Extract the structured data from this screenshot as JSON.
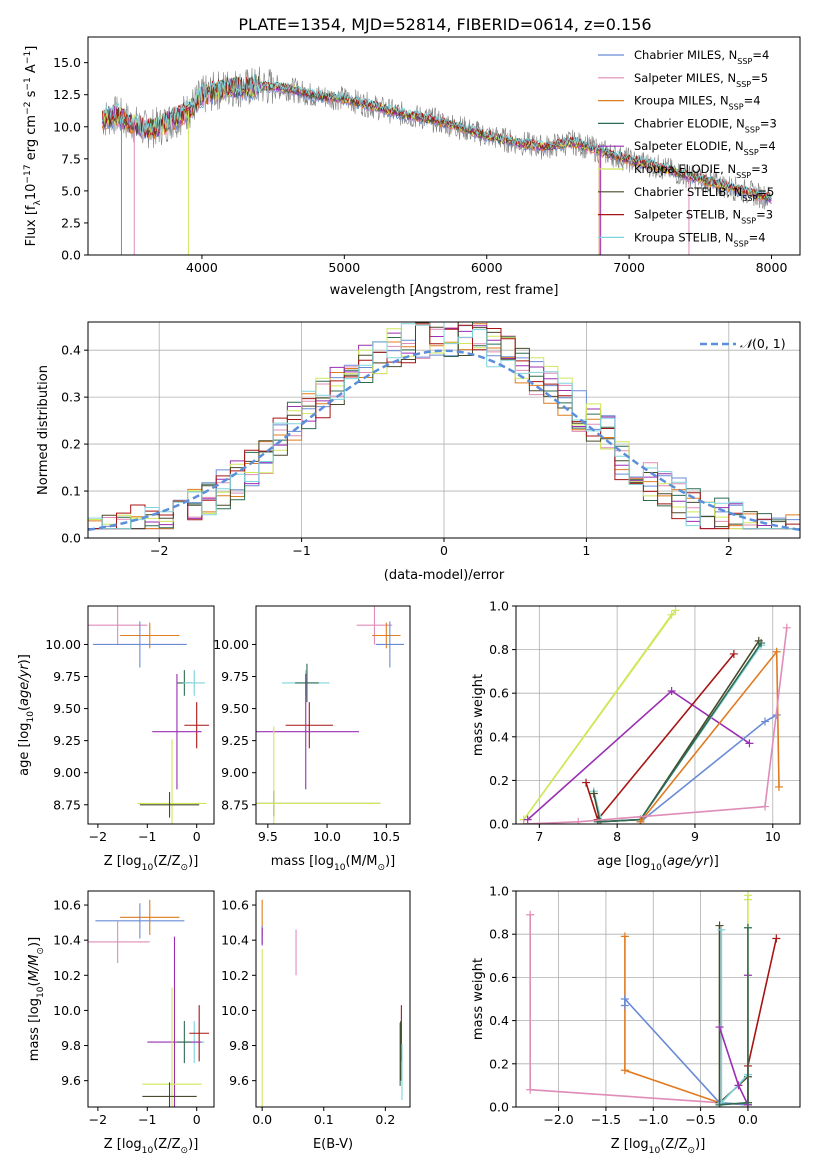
{
  "figure_title": "PLATE=1354, MJD=52814, FIBERID=0614, z=0.156",
  "colors": {
    "Chabrier MILES": "#6a8bd6",
    "Salpeter MILES": "#e08cb8",
    "Kroupa MILES": "#e07b1f",
    "Chabrier ELODIE": "#2e6b52",
    "Salpeter ELODIE": "#9a2fb2",
    "Kroupa ELODIE": "#cfe85a",
    "Chabrier STELIB": "#4a4a2a",
    "Salpeter STELIB": "#a81414",
    "Kroupa STELIB": "#7fd3dc",
    "data": "#808080",
    "gauss": "#5b8fdc"
  },
  "chart_data": [
    {
      "type": "line",
      "panel": "spectrum",
      "xlabel": "wavelength [Angstrom, rest frame]",
      "ylabel": "Flux [f_λ 10^-17 erg cm^-2 s^-1 A^-1]",
      "xlim": [
        3200,
        8200
      ],
      "ylim": [
        0,
        17
      ],
      "xticks": [
        "4000",
        "5000",
        "6000",
        "7000",
        "8000"
      ],
      "yticks": [
        "0.0",
        "2.5",
        "5.0",
        "7.5",
        "10.0",
        "12.5",
        "15.0"
      ],
      "legend_position": "upper-right",
      "legend": [
        {
          "model": "Chabrier MILES",
          "label": "Chabrier MILES, N",
          "nssp": "=4"
        },
        {
          "model": "Salpeter MILES",
          "label": "Salpeter MILES, N",
          "nssp": "=5"
        },
        {
          "model": "Kroupa MILES",
          "label": "Kroupa MILES, N",
          "nssp": "=4"
        },
        {
          "model": "Chabrier ELODIE",
          "label": "Chabrier ELODIE, N",
          "nssp": "=3"
        },
        {
          "model": "Salpeter ELODIE",
          "label": "Salpeter ELODIE, N",
          "nssp": "=4"
        },
        {
          "model": "Kroupa ELODIE",
          "label": "Kroupa ELODIE, N",
          "nssp": "=3"
        },
        {
          "model": "Chabrier STELIB",
          "label": "Chabrier STELIB, N",
          "nssp": "=5"
        },
        {
          "model": "Salpeter STELIB",
          "label": "Salpeter STELIB, N",
          "nssp": "=3"
        },
        {
          "model": "Kroupa STELIB",
          "label": "Kroupa STELIB, N",
          "nssp": "=4"
        }
      ],
      "subscript": "SSP",
      "continuum": {
        "wavelength": [
          3300,
          3400,
          3500,
          3600,
          3700,
          3800,
          3900,
          4000,
          4100,
          4200,
          4300,
          4400,
          4500,
          4600,
          4800,
          5000,
          5200,
          5400,
          5600,
          5800,
          6000,
          6200,
          6400,
          6600,
          6800,
          7000,
          7200,
          7400,
          7600,
          7800,
          8000
        ],
        "flux": [
          10.6,
          10.9,
          10.3,
          9.8,
          10.0,
          10.6,
          11.2,
          12.4,
          12.8,
          13.1,
          13.0,
          13.2,
          13.1,
          13.0,
          12.4,
          12.2,
          11.6,
          11.0,
          10.6,
          10.0,
          9.3,
          8.8,
          8.4,
          8.8,
          8.1,
          7.4,
          6.9,
          6.2,
          5.6,
          5.0,
          4.4
        ]
      },
      "absorption_dips": [
        {
          "model": "Chabrier MILES",
          "wavelength": 3435,
          "min_flux": 0.0
        },
        {
          "model": "Salpeter MILES",
          "wavelength": 3525,
          "min_flux": 0.0
        },
        {
          "model": "Kroupa ELODIE",
          "wavelength": 3905,
          "min_flux": 0.0
        },
        {
          "model": "Kroupa MILES",
          "wavelength": 6790,
          "min_flux": 0.0
        },
        {
          "model": "Salpeter ELODIE",
          "wavelength": 6800,
          "min_flux": 0.0
        },
        {
          "model": "Salpeter MILES",
          "wavelength": 7420,
          "min_flux": 0.0
        }
      ]
    },
    {
      "type": "histogram",
      "panel": "residuals",
      "xlabel": "(data-model)/error",
      "ylabel": "Normed distribution",
      "xlim": [
        -2.5,
        2.5
      ],
      "ylim": [
        0,
        0.46
      ],
      "xticks": [
        "−2",
        "−1",
        "0",
        "1",
        "2"
      ],
      "yticks": [
        "0.0",
        "0.1",
        "0.2",
        "0.3",
        "0.4"
      ],
      "grid": true,
      "gauss_label": "(0, 1)",
      "gauss_symbol": "𝒩",
      "bin_width": 0.1
    },
    {
      "type": "scatter",
      "panel": "age-vs-Z",
      "xlabel_prefix": "Z [log",
      "xlabel_sub": "10",
      "xlabel_suffix": "(Z/Z",
      "ylabel": "age  [log10(age/yr)]",
      "xlim": [
        -2.2,
        0.35
      ],
      "ylim": [
        8.6,
        10.3
      ],
      "xticks": [
        "−2",
        "−1",
        "0"
      ],
      "yticks": [
        "8.75",
        "9.00",
        "9.25",
        "9.50",
        "9.75",
        "10.00"
      ],
      "points": [
        {
          "model": "Salpeter MILES",
          "x": -1.6,
          "xerr": 0.6,
          "y": 10.15,
          "yerr": 0.15
        },
        {
          "model": "Kroupa MILES",
          "x": -0.95,
          "xerr": 0.6,
          "y": 10.07,
          "yerr": 0.1
        },
        {
          "model": "Chabrier MILES",
          "x": -1.15,
          "xerr": 0.95,
          "y": 10.0,
          "yerr": 0.18
        },
        {
          "model": "Chabrier ELODIE",
          "x": -0.25,
          "xerr": 0.15,
          "y": 9.7,
          "yerr": 0.1
        },
        {
          "model": "Kroupa STELIB",
          "x": -0.05,
          "xerr": 0.22,
          "y": 9.7,
          "yerr": 0.1
        },
        {
          "model": "Salpeter STELIB",
          "x": 0.0,
          "xerr": 0.25,
          "y": 9.37,
          "yerr": 0.18
        },
        {
          "model": "Salpeter ELODIE",
          "x": -0.4,
          "xerr": 0.5,
          "y": 9.32,
          "yerr": 0.45
        },
        {
          "model": "Kroupa ELODIE",
          "x": -0.5,
          "xerr": 0.7,
          "y": 8.76,
          "yerr": 0.5
        },
        {
          "model": "Chabrier STELIB",
          "x": -0.55,
          "xerr": 0.6,
          "y": 8.75,
          "yerr": 0.1
        }
      ]
    },
    {
      "type": "scatter",
      "panel": "age-vs-mass",
      "xlabel_prefix": "mass [log",
      "xlabel_sub": "10",
      "xlabel_suffix": "(M/M",
      "xlim": [
        9.4,
        10.7
      ],
      "ylim": [
        8.6,
        10.3
      ],
      "xticks": [
        "9.5",
        "10.0",
        "10.5"
      ],
      "yticks": [
        "8.75",
        "9.00",
        "9.25",
        "9.50",
        "9.75",
        "10.00"
      ],
      "points": [
        {
          "model": "Salpeter MILES",
          "x": 10.4,
          "xerr": 0.15,
          "y": 10.15,
          "yerr": 0.15
        },
        {
          "model": "Kroupa MILES",
          "x": 10.5,
          "xerr": 0.12,
          "y": 10.07,
          "yerr": 0.1
        },
        {
          "model": "Chabrier MILES",
          "x": 10.53,
          "xerr": 0.12,
          "y": 10.0,
          "yerr": 0.18
        },
        {
          "model": "Kroupa STELIB",
          "x": 9.82,
          "xerr": 0.2,
          "y": 9.7,
          "yerr": 0.1
        },
        {
          "model": "Chabrier ELODIE",
          "x": 9.83,
          "xerr": 0.1,
          "y": 9.7,
          "yerr": 0.15
        },
        {
          "model": "Salpeter STELIB",
          "x": 9.85,
          "xerr": 0.2,
          "y": 9.37,
          "yerr": 0.18
        },
        {
          "model": "Salpeter ELODIE",
          "x": 9.82,
          "xerr": 0.45,
          "y": 9.32,
          "yerr": 0.45
        },
        {
          "model": "Chabrier STELIB",
          "x": 9.55,
          "xerr": 0.9,
          "y": 8.76,
          "yerr": 0.1
        },
        {
          "model": "Kroupa ELODIE",
          "x": 9.55,
          "xerr": 0.9,
          "y": 8.76,
          "yerr": 0.6
        }
      ]
    },
    {
      "type": "line",
      "panel": "weight-vs-age",
      "xlabel": "age  [log10(age/yr)]",
      "ylabel": "mass weight",
      "xlim": [
        6.7,
        10.35
      ],
      "ylim": [
        0,
        1.0
      ],
      "xticks": [
        "7",
        "8",
        "9",
        "10"
      ],
      "yticks": [
        "0.0",
        "0.2",
        "0.4",
        "0.6",
        "0.8",
        "1.0"
      ],
      "grid": true,
      "series": [
        {
          "model": "Kroupa ELODIE",
          "x": [
            6.8,
            8.7,
            6.8,
            8.75
          ],
          "y": [
            0.02,
            0.96,
            0.02,
            0.98
          ]
        },
        {
          "model": "Salpeter ELODIE",
          "x": [
            6.85,
            8.7,
            9.7
          ],
          "y": [
            0.02,
            0.61,
            0.37
          ]
        },
        {
          "model": "Salpeter STELIB",
          "x": [
            7.6,
            7.75,
            9.5
          ],
          "y": [
            0.19,
            0.02,
            0.78
          ]
        },
        {
          "model": "Kroupa STELIB",
          "x": [
            7.7,
            7.8,
            8.3,
            9.85
          ],
          "y": [
            0.15,
            0.01,
            0.02,
            0.82
          ]
        },
        {
          "model": "Chabrier STELIB",
          "x": [
            7.7,
            7.78,
            8.3,
            9.82
          ],
          "y": [
            0.14,
            0.01,
            0.02,
            0.84
          ]
        },
        {
          "model": "Chabrier ELODIE",
          "x": [
            7.75,
            8.3,
            9.85
          ],
          "y": [
            0.01,
            0.02,
            0.83
          ]
        },
        {
          "model": "Chabrier MILES",
          "x": [
            8.3,
            9.9,
            10.05
          ],
          "y": [
            0.01,
            0.47,
            0.5
          ]
        },
        {
          "model": "Kroupa MILES",
          "x": [
            8.3,
            10.05,
            10.08
          ],
          "y": [
            0.01,
            0.79,
            0.17
          ]
        },
        {
          "model": "Salpeter MILES",
          "x": [
            6.8,
            7.5,
            9.9,
            10.18
          ],
          "y": [
            0.0,
            0.01,
            0.08,
            0.9
          ]
        }
      ]
    },
    {
      "type": "scatter",
      "panel": "mass-vs-Z",
      "xlabel_prefix": "Z [log",
      "xlabel_sub": "10",
      "xlabel_suffix": "(Z/Z",
      "ylabel": "mass [log10(M/M☉)]",
      "xlim": [
        -2.2,
        0.35
      ],
      "ylim": [
        9.45,
        10.68
      ],
      "xticks": [
        "−2",
        "−1",
        "0"
      ],
      "yticks": [
        "9.6",
        "9.8",
        "10.0",
        "10.2",
        "10.4",
        "10.6"
      ],
      "points": [
        {
          "model": "Kroupa MILES",
          "x": -0.95,
          "xerr": 0.6,
          "y": 10.53,
          "yerr": 0.1
        },
        {
          "model": "Chabrier MILES",
          "x": -1.15,
          "xerr": 0.9,
          "y": 10.51,
          "yerr": 0.1
        },
        {
          "model": "Salpeter MILES",
          "x": -1.6,
          "xerr": 0.65,
          "y": 10.39,
          "yerr": 0.12
        },
        {
          "model": "Kroupa STELIB",
          "x": -0.05,
          "xerr": 0.2,
          "y": 9.82,
          "yerr": 0.12
        },
        {
          "model": "Salpeter STELIB",
          "x": 0.05,
          "xerr": 0.2,
          "y": 9.87,
          "yerr": 0.16
        },
        {
          "model": "Salpeter ELODIE",
          "x": -0.45,
          "xerr": 0.55,
          "y": 9.82,
          "yerr": 0.6
        },
        {
          "model": "Chabrier ELODIE",
          "x": -0.25,
          "xerr": 0.15,
          "y": 9.82,
          "yerr": 0.12
        },
        {
          "model": "Kroupa ELODIE",
          "x": -0.5,
          "xerr": 0.6,
          "y": 9.58,
          "yerr": 0.55
        },
        {
          "model": "Chabrier STELIB",
          "x": -0.55,
          "xerr": 0.55,
          "y": 9.51,
          "yerr": 0.08
        }
      ]
    },
    {
      "type": "scatter",
      "panel": "mass-vs-EBV",
      "xlabel": "E(B-V)",
      "xlim": [
        -0.01,
        0.24
      ],
      "ylim": [
        9.45,
        10.68
      ],
      "xticks": [
        "0.0",
        "0.1",
        "0.2"
      ],
      "yticks": [
        "9.6",
        "9.8",
        "10.0",
        "10.2",
        "10.4",
        "10.6"
      ],
      "points": [
        {
          "model": "Kroupa MILES",
          "x": 0.0,
          "xerr": 0.0,
          "y": 10.53,
          "yerr": 0.1
        },
        {
          "model": "Chabrier MILES",
          "x": 0.0,
          "xerr": 0.0,
          "y": 10.43,
          "yerr": 0.05
        },
        {
          "model": "Salpeter ELODIE",
          "x": 0.0,
          "xerr": 0.0,
          "y": 10.42,
          "yerr": 0.05
        },
        {
          "model": "Salpeter MILES",
          "x": 0.055,
          "xerr": 0.0,
          "y": 10.33,
          "yerr": 0.13
        },
        {
          "model": "Kroupa ELODIE",
          "x": 0.0,
          "xerr": 0.0,
          "y": 9.85,
          "yerr": 0.5
        },
        {
          "model": "Salpeter STELIB",
          "x": 0.226,
          "xerr": 0.0,
          "y": 9.87,
          "yerr": 0.16
        },
        {
          "model": "Chabrier ELODIE",
          "x": 0.224,
          "xerr": 0.0,
          "y": 9.75,
          "yerr": 0.18
        },
        {
          "model": "Chabrier STELIB",
          "x": 0.225,
          "xerr": 0.0,
          "y": 9.77,
          "yerr": 0.17
        },
        {
          "model": "Kroupa STELIB",
          "x": 0.227,
          "xerr": 0.0,
          "y": 9.65,
          "yerr": 0.16
        }
      ]
    },
    {
      "type": "line",
      "panel": "weight-vs-Z",
      "xlabel_prefix": "Z [log",
      "xlabel_sub": "10",
      "xlabel_suffix": "(Z/Z",
      "ylabel": "mass weight",
      "xlim": [
        -2.45,
        0.55
      ],
      "ylim": [
        0,
        1.0
      ],
      "xticks": [
        "−2.0",
        "−1.5",
        "−1.0",
        "−0.5",
        "0.0"
      ],
      "yticks": [
        "0.0",
        "0.2",
        "0.4",
        "0.6",
        "0.8",
        "1.0"
      ],
      "grid": true,
      "series": [
        {
          "model": "Salpeter MILES",
          "x": [
            -2.3,
            -2.3,
            -0.3,
            0.0
          ],
          "y": [
            0.89,
            0.08,
            0.02,
            0.01
          ]
        },
        {
          "model": "Kroupa MILES",
          "x": [
            -1.3,
            -1.3,
            -0.3,
            0.0
          ],
          "y": [
            0.79,
            0.17,
            0.02,
            0.01
          ]
        },
        {
          "model": "Chabrier MILES",
          "x": [
            -1.3,
            -1.3,
            -0.3,
            0.0
          ],
          "y": [
            0.47,
            0.5,
            0.02,
            0.01
          ]
        },
        {
          "model": "Chabrier STELIB",
          "x": [
            -0.3,
            -0.3,
            0.0,
            0.0
          ],
          "y": [
            0.84,
            0.02,
            0.14,
            0.01
          ]
        },
        {
          "model": "Kroupa STELIB",
          "x": [
            -0.28,
            -0.28,
            0.0,
            0.0
          ],
          "y": [
            0.82,
            0.02,
            0.15,
            0.01
          ]
        },
        {
          "model": "Salpeter ELODIE",
          "x": [
            -0.3,
            -0.1,
            0.0,
            0.0
          ],
          "y": [
            0.37,
            0.1,
            0.01,
            0.61
          ]
        },
        {
          "model": "Kroupa ELODIE",
          "x": [
            0.0,
            0.0,
            0.0
          ],
          "y": [
            0.98,
            0.02,
            0.96
          ]
        },
        {
          "model": "Salpeter STELIB",
          "x": [
            0.0,
            0.0,
            0.3
          ],
          "y": [
            0.02,
            0.19,
            0.78
          ]
        },
        {
          "model": "Chabrier ELODIE",
          "x": [
            -0.3,
            0.0,
            0.0
          ],
          "y": [
            0.01,
            0.02,
            0.83
          ]
        }
      ]
    }
  ]
}
